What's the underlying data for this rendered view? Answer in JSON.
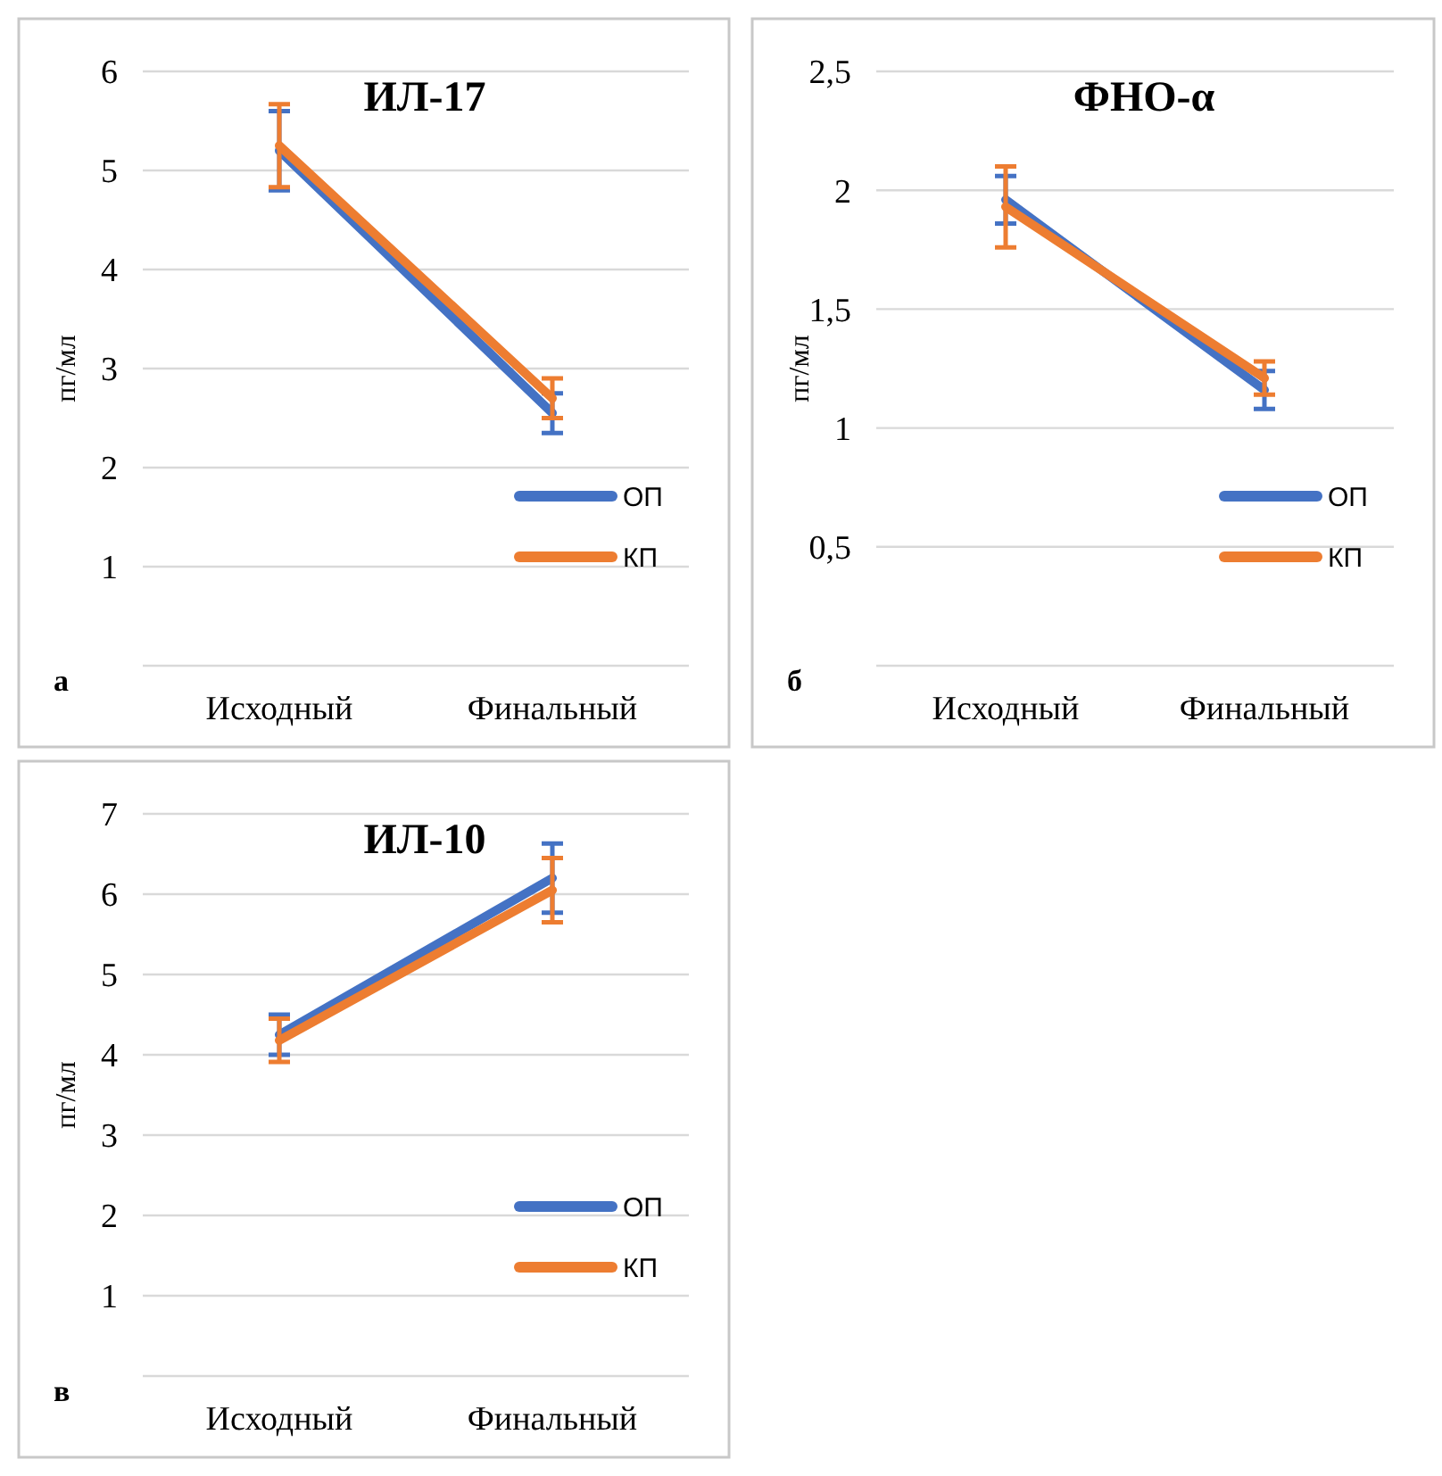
{
  "chart_data": [
    {
      "type": "line",
      "title": "ИЛ-17",
      "ylabel": "пг/мл",
      "annotations": [
        "а"
      ],
      "categories": [
        "Исходный",
        "Финальный"
      ],
      "ylim": [
        0,
        6
      ],
      "yticks": [
        {
          "value": 0,
          "label": null
        },
        1,
        2,
        3,
        4,
        5,
        6
      ],
      "grid": "y",
      "legend": "bottom right",
      "series": [
        {
          "name": "ОП",
          "color": "#4472c4",
          "values": [
            5.2,
            2.55
          ],
          "errors": [
            0.4,
            0.2
          ]
        },
        {
          "name": "КП",
          "color": "#ed7d31",
          "values": [
            5.25,
            2.7
          ],
          "errors": [
            0.42,
            0.2
          ]
        }
      ]
    },
    {
      "type": "line",
      "title": "ФНО-α",
      "ylabel": "пг/мл",
      "annotations": [
        "б"
      ],
      "categories": [
        "Исходный",
        "Финальный"
      ],
      "ylim": [
        0,
        2.5
      ],
      "yticks": [
        {
          "value": 0,
          "label": null
        },
        {
          "value": 0.5,
          "label": "0,5"
        },
        1,
        {
          "value": 1.5,
          "label": "1,5"
        },
        2,
        {
          "value": 2.5,
          "label": "2,5"
        }
      ],
      "grid": "y",
      "legend": "bottom right",
      "series": [
        {
          "name": "ОП",
          "color": "#4472c4",
          "values": [
            1.96,
            1.16
          ],
          "errors": [
            0.1,
            0.08
          ]
        },
        {
          "name": "КП",
          "color": "#ed7d31",
          "values": [
            1.93,
            1.21
          ],
          "errors": [
            0.17,
            0.07
          ]
        }
      ]
    },
    {
      "type": "line",
      "title": "ИЛ-10",
      "ylabel": "пг/мл",
      "annotations": [
        "в"
      ],
      "categories": [
        "Исходный",
        "Финальный"
      ],
      "ylim": [
        0,
        7
      ],
      "yticks": [
        {
          "value": 0,
          "label": null
        },
        1,
        2,
        3,
        4,
        5,
        6,
        7
      ],
      "grid": "y",
      "legend": "bottom right",
      "series": [
        {
          "name": "ОП",
          "color": "#4472c4",
          "values": [
            4.25,
            6.2
          ],
          "errors": [
            0.25,
            0.43
          ]
        },
        {
          "name": "КП",
          "color": "#ed7d31",
          "values": [
            4.18,
            6.05
          ],
          "errors": [
            0.27,
            0.4
          ]
        }
      ]
    }
  ]
}
